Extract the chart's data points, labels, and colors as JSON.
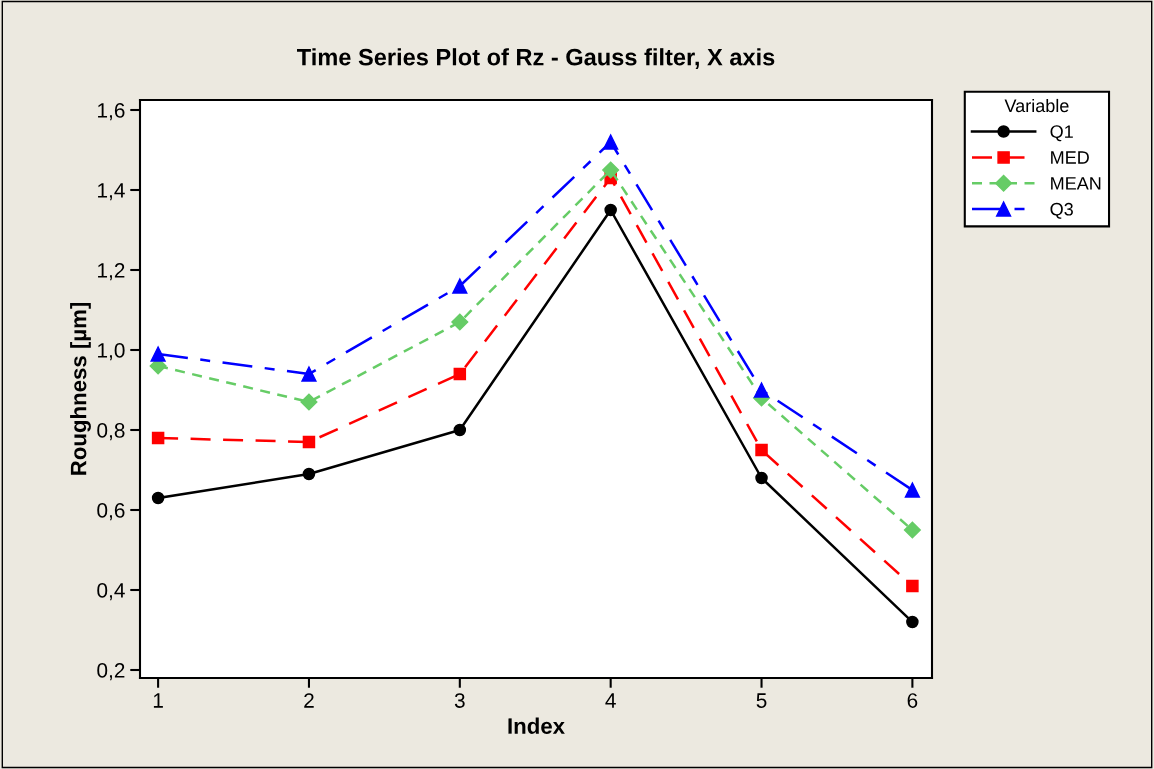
{
  "chart_data": {
    "type": "line",
    "title": "Time Series Plot of Rz - Gauss filter, X axis",
    "xlabel": "Index",
    "ylabel": "Roughness [µm]",
    "legend_title": "Variable",
    "x": [
      1,
      2,
      3,
      4,
      5,
      6
    ],
    "series": [
      {
        "name": "Q1",
        "color": "#000000",
        "marker": "circle",
        "line_style": "solid",
        "values": [
          0.63,
          0.69,
          0.8,
          1.35,
          0.68,
          0.32
        ]
      },
      {
        "name": "MED",
        "color": "#ff0000",
        "marker": "square",
        "line_style": "dashed",
        "values": [
          0.78,
          0.77,
          0.94,
          1.43,
          0.75,
          0.41
        ]
      },
      {
        "name": "MEAN",
        "color": "#66cc66",
        "marker": "diamond",
        "line_style": "dotted",
        "values": [
          0.96,
          0.87,
          1.07,
          1.45,
          0.88,
          0.55
        ]
      },
      {
        "name": "Q3",
        "color": "#0000ff",
        "marker": "triangle",
        "line_style": "dashdot",
        "values": [
          0.99,
          0.94,
          1.16,
          1.52,
          0.9,
          0.65
        ]
      }
    ],
    "xlim": [
      0.88,
      6.13
    ],
    "xticks": [
      1,
      2,
      3,
      4,
      5,
      6
    ],
    "ylim": [
      0.18,
      1.625
    ],
    "yticks": [
      {
        "value": 0.2,
        "label": "0,2"
      },
      {
        "value": 0.4,
        "label": "0,4"
      },
      {
        "value": 0.6,
        "label": "0,6"
      },
      {
        "value": 0.8,
        "label": "0,8"
      },
      {
        "value": 1.0,
        "label": "1,0"
      },
      {
        "value": 1.2,
        "label": "1,2"
      },
      {
        "value": 1.4,
        "label": "1,4"
      },
      {
        "value": 1.6,
        "label": "1,6"
      }
    ],
    "grid": false,
    "legend": "top right"
  }
}
